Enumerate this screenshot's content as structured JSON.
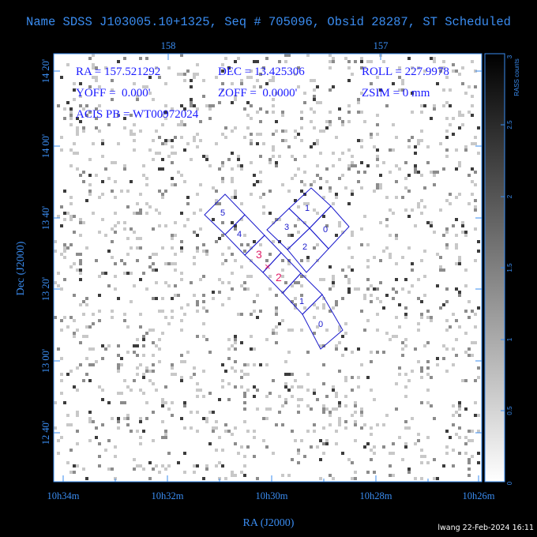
{
  "title": "Name SDSS J103005.10+1325, Seq # 705096, Obsid 28287, ST Scheduled",
  "info": {
    "ra": "RA = 157.521292",
    "dec": "DEC = 13.425306",
    "roll": "ROLL = 227.9978",
    "yoff": "YOFF =  0.000'",
    "zoff": "ZOFF =  0.0000'",
    "zsim": "ZSIM = 0 mm",
    "acis_pb": "ACIS PB = WT00972024"
  },
  "x_axis": {
    "label": "RA (J2000)",
    "ticks": [
      "10h34m",
      "10h32m",
      "10h30m",
      "10h28m",
      "10h26m"
    ],
    "top_ticks": [
      "158",
      "157"
    ]
  },
  "y_axis": {
    "label": "Dec (J2000)",
    "ticks": [
      "14 20'",
      "14 00'",
      "13 40'",
      "13 20'",
      "13 00'",
      "12 40'"
    ]
  },
  "colorbar": {
    "label": "RASS counts",
    "ticks": [
      "0",
      "0.5",
      "1",
      "1.5",
      "2",
      "2.5",
      "3"
    ]
  },
  "chips": {
    "s_array": [
      "5",
      "4",
      "3",
      "2",
      "1",
      "0"
    ],
    "i_array": [
      "1",
      "0",
      "3",
      "2"
    ],
    "highlighted": [
      "3",
      "2"
    ],
    "aimpoint_marker": "×"
  },
  "footer": "lwang 22-Feb-2024 16:11",
  "colors": {
    "axis": "#3a8cf0",
    "info_text": "#1a1aff",
    "chip_outline": "#1a1acc",
    "chip_highlight": "#e0206a",
    "field_background": "#ffffff"
  }
}
